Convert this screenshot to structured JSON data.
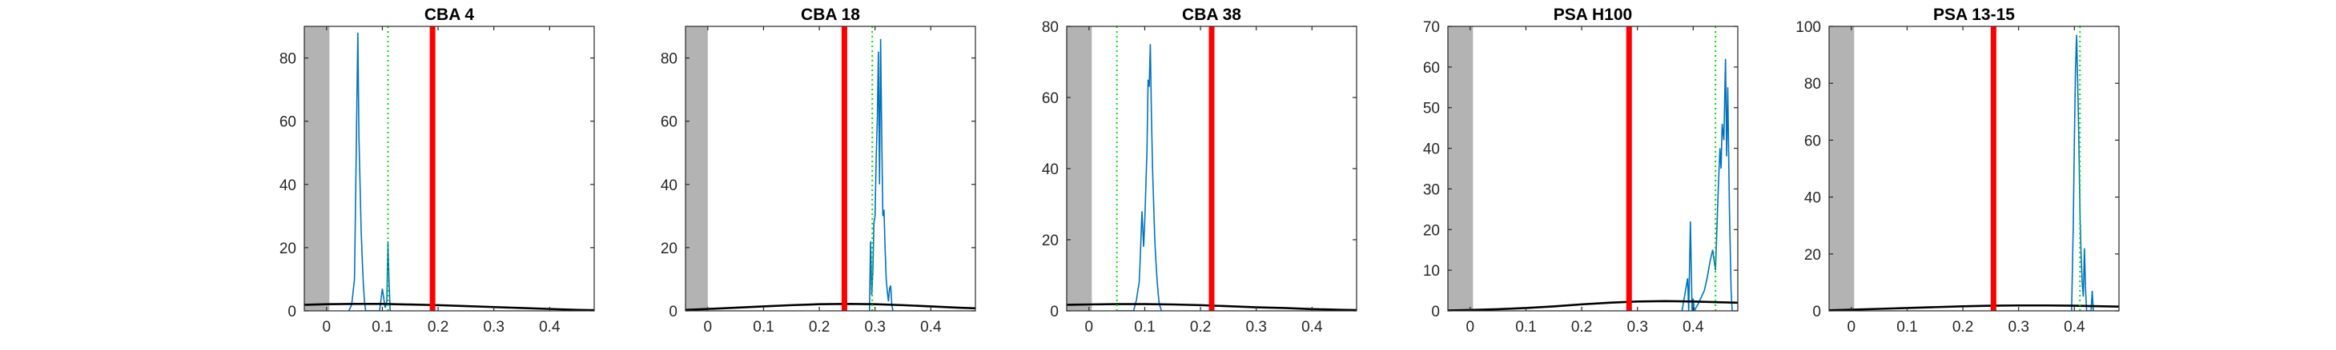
{
  "chart_data": [
    {
      "type": "line",
      "title": "CBA 4",
      "xlim": [
        -0.04,
        0.48
      ],
      "ylim": [
        0,
        90
      ],
      "xticks": [
        0,
        0.1,
        0.2,
        0.3,
        0.4
      ],
      "xtick_labels": [
        "0",
        "0.1",
        "0.2",
        "0.3",
        "0.4"
      ],
      "yticks": [
        0,
        20,
        40,
        60,
        80
      ],
      "ytick_labels": [
        "0",
        "20",
        "40",
        "60",
        "80"
      ],
      "shaded_region": [
        -0.04,
        0.005
      ],
      "threshold_red": 0.19,
      "threshold_green": 0.11,
      "series": [
        {
          "color": "#0072bd",
          "x": [
            0.04,
            0.045,
            0.05,
            0.052,
            0.054,
            0.056,
            0.058,
            0.06,
            0.062,
            0.064,
            0.066,
            0.068,
            0.07,
            0.095,
            0.1,
            0.105,
            0.108,
            0.11,
            0.112,
            0.114,
            0.116
          ],
          "y": [
            0,
            2,
            10,
            35,
            62,
            88,
            55,
            40,
            25,
            16,
            8,
            3,
            0,
            0,
            7,
            1,
            3,
            22,
            9,
            0,
            0
          ]
        },
        {
          "color": "#000000",
          "x": [
            -0.04,
            0.0,
            0.05,
            0.1,
            0.15,
            0.2,
            0.25,
            0.3,
            0.35,
            0.4,
            0.45,
            0.48
          ],
          "y": [
            1.9,
            2.1,
            2.2,
            2.2,
            2.0,
            1.8,
            1.5,
            1.2,
            0.9,
            0.6,
            0.3,
            0.2
          ]
        }
      ]
    },
    {
      "type": "line",
      "title": "CBA 18",
      "xlim": [
        -0.04,
        0.48
      ],
      "ylim": [
        0,
        90
      ],
      "xticks": [
        0,
        0.1,
        0.2,
        0.3,
        0.4
      ],
      "xtick_labels": [
        "0",
        "0.1",
        "0.2",
        "0.3",
        "0.4"
      ],
      "yticks": [
        0,
        20,
        40,
        60,
        80
      ],
      "ytick_labels": [
        "0",
        "20",
        "40",
        "60",
        "80"
      ],
      "shaded_region": [
        -0.04,
        0.0
      ],
      "threshold_red": 0.245,
      "threshold_green": 0.295,
      "series": [
        {
          "color": "#0072bd",
          "x": [
            0.29,
            0.292,
            0.294,
            0.296,
            0.298,
            0.3,
            0.302,
            0.304,
            0.306,
            0.308,
            0.31,
            0.312,
            0.314,
            0.316,
            0.318,
            0.32,
            0.322,
            0.324,
            0.326,
            0.328,
            0.33,
            0.332
          ],
          "y": [
            0,
            22,
            5,
            12,
            28,
            30,
            48,
            60,
            82,
            40,
            86,
            55,
            30,
            32,
            20,
            10,
            6,
            3,
            7,
            8,
            2,
            0
          ]
        },
        {
          "color": "#000000",
          "x": [
            -0.04,
            0.0,
            0.05,
            0.1,
            0.15,
            0.2,
            0.25,
            0.3,
            0.35,
            0.4,
            0.45,
            0.48
          ],
          "y": [
            0.3,
            0.6,
            1.0,
            1.4,
            1.8,
            2.1,
            2.2,
            2.1,
            1.8,
            1.4,
            1.0,
            0.8
          ]
        }
      ]
    },
    {
      "type": "line",
      "title": "CBA 38",
      "xlim": [
        -0.04,
        0.48
      ],
      "ylim": [
        0,
        80
      ],
      "xticks": [
        0,
        0.1,
        0.2,
        0.3,
        0.4
      ],
      "xtick_labels": [
        "0",
        "0.1",
        "0.2",
        "0.3",
        "0.4"
      ],
      "yticks": [
        0,
        20,
        40,
        60,
        80
      ],
      "ytick_labels": [
        "0",
        "20",
        "40",
        "60",
        "80"
      ],
      "shaded_region": [
        -0.04,
        0.005
      ],
      "threshold_red": 0.22,
      "threshold_green": 0.05,
      "series": [
        {
          "color": "#0072bd",
          "x": [
            0.05,
            0.08,
            0.085,
            0.09,
            0.092,
            0.095,
            0.098,
            0.1,
            0.102,
            0.104,
            0.106,
            0.108,
            0.11,
            0.112,
            0.114,
            0.116,
            0.118,
            0.12,
            0.122,
            0.124,
            0.126,
            0.13
          ],
          "y": [
            0,
            0,
            3,
            8,
            15,
            28,
            18,
            25,
            35,
            45,
            65,
            63,
            75,
            55,
            40,
            30,
            20,
            14,
            9,
            5,
            2,
            0
          ]
        },
        {
          "color": "#000000",
          "x": [
            -0.04,
            0.0,
            0.05,
            0.1,
            0.15,
            0.2,
            0.25,
            0.3,
            0.35,
            0.4,
            0.45,
            0.48
          ],
          "y": [
            1.7,
            1.8,
            1.9,
            1.9,
            1.8,
            1.6,
            1.3,
            1.0,
            0.8,
            0.5,
            0.3,
            0.2
          ]
        }
      ]
    },
    {
      "type": "line",
      "title": "PSA H100",
      "xlim": [
        -0.04,
        0.48
      ],
      "ylim": [
        0,
        70
      ],
      "xticks": [
        0,
        0.1,
        0.2,
        0.3,
        0.4
      ],
      "xtick_labels": [
        "0",
        "0.1",
        "0.2",
        "0.3",
        "0.4"
      ],
      "yticks": [
        0,
        10,
        20,
        30,
        40,
        50,
        60,
        70
      ],
      "ytick_labels": [
        "0",
        "10",
        "20",
        "30",
        "40",
        "50",
        "60",
        "70"
      ],
      "shaded_region": [
        -0.04,
        0.005
      ],
      "threshold_red": 0.285,
      "threshold_green": 0.44,
      "series": [
        {
          "color": "#0072bd",
          "x": [
            0.38,
            0.39,
            0.392,
            0.395,
            0.398,
            0.4,
            0.402,
            0.41,
            0.42,
            0.425,
            0.43,
            0.435,
            0.44,
            0.445,
            0.448,
            0.45,
            0.452,
            0.455,
            0.458,
            0.46,
            0.462,
            0.465,
            0.468,
            0.47
          ],
          "y": [
            0,
            8,
            0,
            22,
            0,
            3,
            0,
            2,
            5,
            8,
            12,
            15,
            10,
            30,
            40,
            35,
            46,
            42,
            62,
            38,
            55,
            25,
            5,
            0
          ]
        },
        {
          "color": "#000000",
          "x": [
            -0.04,
            0.0,
            0.05,
            0.1,
            0.15,
            0.2,
            0.25,
            0.3,
            0.35,
            0.4,
            0.45,
            0.48
          ],
          "y": [
            0.1,
            0.2,
            0.4,
            0.7,
            1.1,
            1.6,
            2.0,
            2.3,
            2.4,
            2.3,
            2.1,
            2.0
          ]
        }
      ]
    },
    {
      "type": "line",
      "title": "PSA 13-15",
      "xlim": [
        -0.04,
        0.48
      ],
      "ylim": [
        0,
        100
      ],
      "xticks": [
        0,
        0.1,
        0.2,
        0.3,
        0.4
      ],
      "xtick_labels": [
        "0",
        "0.1",
        "0.2",
        "0.3",
        "0.4"
      ],
      "yticks": [
        0,
        20,
        40,
        60,
        80,
        100
      ],
      "ytick_labels": [
        "0",
        "20",
        "40",
        "60",
        "80",
        "100"
      ],
      "shaded_region": [
        -0.04,
        0.005
      ],
      "threshold_red": 0.255,
      "threshold_green": 0.41,
      "series": [
        {
          "color": "#0072bd",
          "x": [
            0.395,
            0.398,
            0.4,
            0.402,
            0.404,
            0.406,
            0.408,
            0.41,
            0.412,
            0.414,
            0.416,
            0.418,
            0.42,
            0.422,
            0.43,
            0.432,
            0.434
          ],
          "y": [
            0,
            30,
            60,
            85,
            97,
            80,
            60,
            35,
            20,
            10,
            5,
            22,
            8,
            0,
            0,
            7,
            0
          ]
        },
        {
          "color": "#000000",
          "x": [
            -0.04,
            0.0,
            0.05,
            0.1,
            0.15,
            0.2,
            0.25,
            0.3,
            0.35,
            0.4,
            0.45,
            0.48
          ],
          "y": [
            0.2,
            0.4,
            0.7,
            1.0,
            1.3,
            1.6,
            1.8,
            1.9,
            1.9,
            1.8,
            1.6,
            1.5
          ]
        }
      ]
    }
  ]
}
